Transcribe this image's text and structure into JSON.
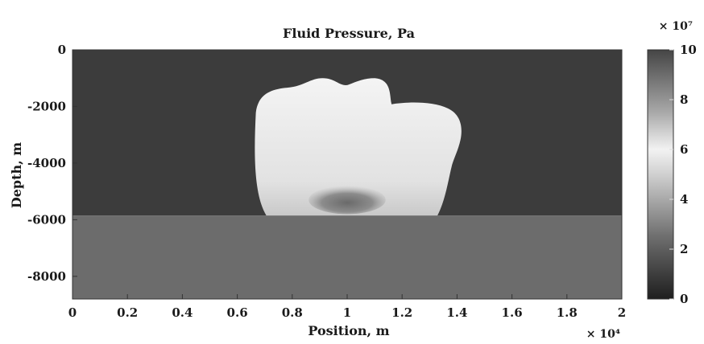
{
  "chart_data": {
    "type": "heatmap",
    "title": "Fluid Pressure, Pa",
    "xlabel": "Position, m",
    "ylabel": "Depth, m",
    "x_multiplier": "× 10⁴",
    "colorbar_multiplier": "× 10⁷",
    "xlim": [
      0,
      2
    ],
    "ylim": [
      -8800,
      0
    ],
    "xticks": [
      0,
      0.2,
      0.4,
      0.6,
      0.8,
      1,
      1.2,
      1.4,
      1.6,
      1.8,
      2
    ],
    "xtick_labels": [
      "0",
      "0.2",
      "0.4",
      "0.6",
      "0.8",
      "1",
      "1.2",
      "1.4",
      "1.6",
      "1.8",
      "2"
    ],
    "yticks": [
      0,
      -2000,
      -4000,
      -6000,
      -8000
    ],
    "ytick_labels": [
      "0",
      "-2000",
      "-4000",
      "-6000",
      "-8000"
    ],
    "colorbar": {
      "range": [
        0,
        10
      ],
      "ticks": [
        0,
        2,
        4,
        6,
        8,
        10
      ],
      "tick_labels": [
        "0",
        "2",
        "4",
        "6",
        "8",
        "10"
      ],
      "colormap": "gray"
    },
    "regions": [
      {
        "name": "upper background",
        "x": [
          0,
          2
        ],
        "y": [
          -5850,
          0
        ],
        "value": 0.8
      },
      {
        "name": "lower layer",
        "x": [
          0,
          2
        ],
        "y": [
          -8800,
          -5850
        ],
        "value": 2.3
      },
      {
        "name": "pressure plume",
        "x": [
          0.66,
          1.42
        ],
        "y": [
          -5850,
          -1000
        ],
        "value": 5.3
      },
      {
        "name": "plume core",
        "x": [
          0.86,
          1.14
        ],
        "y": [
          -5800,
          -4800
        ],
        "value": 3.2
      }
    ],
    "grid": false
  }
}
